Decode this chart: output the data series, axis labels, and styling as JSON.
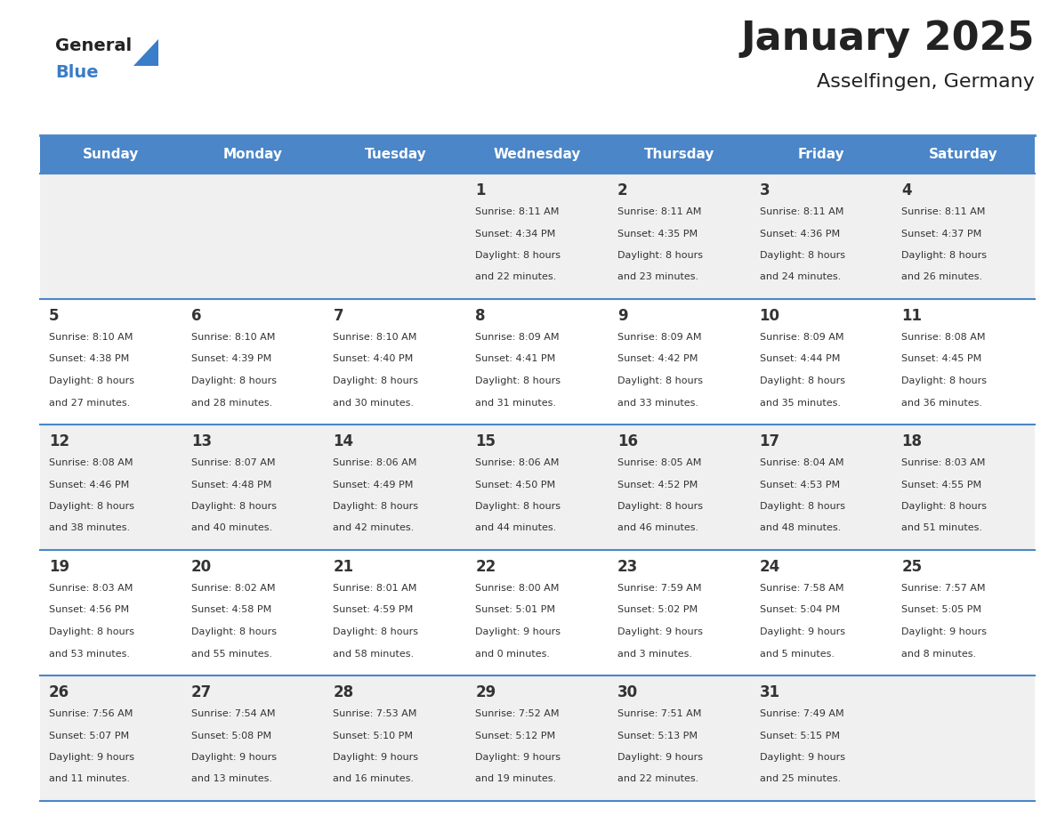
{
  "title": "January 2025",
  "subtitle": "Asselfingen, Germany",
  "days_of_week": [
    "Sunday",
    "Monday",
    "Tuesday",
    "Wednesday",
    "Thursday",
    "Friday",
    "Saturday"
  ],
  "header_bg": "#4A86C8",
  "header_text_color": "#FFFFFF",
  "row_bg_odd": "#F0F0F0",
  "row_bg_even": "#FFFFFF",
  "separator_color": "#4A86C8",
  "text_color": "#333333",
  "title_color": "#222222",
  "logo_general_color": "#222222",
  "logo_blue_color": "#3A7DC8",
  "calendar_data": [
    [
      {
        "day": "",
        "sunrise": "",
        "sunset": "",
        "daylight": ""
      },
      {
        "day": "",
        "sunrise": "",
        "sunset": "",
        "daylight": ""
      },
      {
        "day": "",
        "sunrise": "",
        "sunset": "",
        "daylight": ""
      },
      {
        "day": "1",
        "sunrise": "8:11 AM",
        "sunset": "4:34 PM",
        "daylight_h": "8 hours",
        "daylight_m": "and 22 minutes."
      },
      {
        "day": "2",
        "sunrise": "8:11 AM",
        "sunset": "4:35 PM",
        "daylight_h": "8 hours",
        "daylight_m": "and 23 minutes."
      },
      {
        "day": "3",
        "sunrise": "8:11 AM",
        "sunset": "4:36 PM",
        "daylight_h": "8 hours",
        "daylight_m": "and 24 minutes."
      },
      {
        "day": "4",
        "sunrise": "8:11 AM",
        "sunset": "4:37 PM",
        "daylight_h": "8 hours",
        "daylight_m": "and 26 minutes."
      }
    ],
    [
      {
        "day": "5",
        "sunrise": "8:10 AM",
        "sunset": "4:38 PM",
        "daylight_h": "8 hours",
        "daylight_m": "and 27 minutes."
      },
      {
        "day": "6",
        "sunrise": "8:10 AM",
        "sunset": "4:39 PM",
        "daylight_h": "8 hours",
        "daylight_m": "and 28 minutes."
      },
      {
        "day": "7",
        "sunrise": "8:10 AM",
        "sunset": "4:40 PM",
        "daylight_h": "8 hours",
        "daylight_m": "and 30 minutes."
      },
      {
        "day": "8",
        "sunrise": "8:09 AM",
        "sunset": "4:41 PM",
        "daylight_h": "8 hours",
        "daylight_m": "and 31 minutes."
      },
      {
        "day": "9",
        "sunrise": "8:09 AM",
        "sunset": "4:42 PM",
        "daylight_h": "8 hours",
        "daylight_m": "and 33 minutes."
      },
      {
        "day": "10",
        "sunrise": "8:09 AM",
        "sunset": "4:44 PM",
        "daylight_h": "8 hours",
        "daylight_m": "and 35 minutes."
      },
      {
        "day": "11",
        "sunrise": "8:08 AM",
        "sunset": "4:45 PM",
        "daylight_h": "8 hours",
        "daylight_m": "and 36 minutes."
      }
    ],
    [
      {
        "day": "12",
        "sunrise": "8:08 AM",
        "sunset": "4:46 PM",
        "daylight_h": "8 hours",
        "daylight_m": "and 38 minutes."
      },
      {
        "day": "13",
        "sunrise": "8:07 AM",
        "sunset": "4:48 PM",
        "daylight_h": "8 hours",
        "daylight_m": "and 40 minutes."
      },
      {
        "day": "14",
        "sunrise": "8:06 AM",
        "sunset": "4:49 PM",
        "daylight_h": "8 hours",
        "daylight_m": "and 42 minutes."
      },
      {
        "day": "15",
        "sunrise": "8:06 AM",
        "sunset": "4:50 PM",
        "daylight_h": "8 hours",
        "daylight_m": "and 44 minutes."
      },
      {
        "day": "16",
        "sunrise": "8:05 AM",
        "sunset": "4:52 PM",
        "daylight_h": "8 hours",
        "daylight_m": "and 46 minutes."
      },
      {
        "day": "17",
        "sunrise": "8:04 AM",
        "sunset": "4:53 PM",
        "daylight_h": "8 hours",
        "daylight_m": "and 48 minutes."
      },
      {
        "day": "18",
        "sunrise": "8:03 AM",
        "sunset": "4:55 PM",
        "daylight_h": "8 hours",
        "daylight_m": "and 51 minutes."
      }
    ],
    [
      {
        "day": "19",
        "sunrise": "8:03 AM",
        "sunset": "4:56 PM",
        "daylight_h": "8 hours",
        "daylight_m": "and 53 minutes."
      },
      {
        "day": "20",
        "sunrise": "8:02 AM",
        "sunset": "4:58 PM",
        "daylight_h": "8 hours",
        "daylight_m": "and 55 minutes."
      },
      {
        "day": "21",
        "sunrise": "8:01 AM",
        "sunset": "4:59 PM",
        "daylight_h": "8 hours",
        "daylight_m": "and 58 minutes."
      },
      {
        "day": "22",
        "sunrise": "8:00 AM",
        "sunset": "5:01 PM",
        "daylight_h": "9 hours",
        "daylight_m": "and 0 minutes."
      },
      {
        "day": "23",
        "sunrise": "7:59 AM",
        "sunset": "5:02 PM",
        "daylight_h": "9 hours",
        "daylight_m": "and 3 minutes."
      },
      {
        "day": "24",
        "sunrise": "7:58 AM",
        "sunset": "5:04 PM",
        "daylight_h": "9 hours",
        "daylight_m": "and 5 minutes."
      },
      {
        "day": "25",
        "sunrise": "7:57 AM",
        "sunset": "5:05 PM",
        "daylight_h": "9 hours",
        "daylight_m": "and 8 minutes."
      }
    ],
    [
      {
        "day": "26",
        "sunrise": "7:56 AM",
        "sunset": "5:07 PM",
        "daylight_h": "9 hours",
        "daylight_m": "and 11 minutes."
      },
      {
        "day": "27",
        "sunrise": "7:54 AM",
        "sunset": "5:08 PM",
        "daylight_h": "9 hours",
        "daylight_m": "and 13 minutes."
      },
      {
        "day": "28",
        "sunrise": "7:53 AM",
        "sunset": "5:10 PM",
        "daylight_h": "9 hours",
        "daylight_m": "and 16 minutes."
      },
      {
        "day": "29",
        "sunrise": "7:52 AM",
        "sunset": "5:12 PM",
        "daylight_h": "9 hours",
        "daylight_m": "and 19 minutes."
      },
      {
        "day": "30",
        "sunrise": "7:51 AM",
        "sunset": "5:13 PM",
        "daylight_h": "9 hours",
        "daylight_m": "and 22 minutes."
      },
      {
        "day": "31",
        "sunrise": "7:49 AM",
        "sunset": "5:15 PM",
        "daylight_h": "9 hours",
        "daylight_m": "and 25 minutes."
      },
      {
        "day": "",
        "sunrise": "",
        "sunset": "",
        "daylight_h": "",
        "daylight_m": ""
      }
    ]
  ],
  "figsize": [
    11.88,
    9.18
  ],
  "dpi": 100
}
